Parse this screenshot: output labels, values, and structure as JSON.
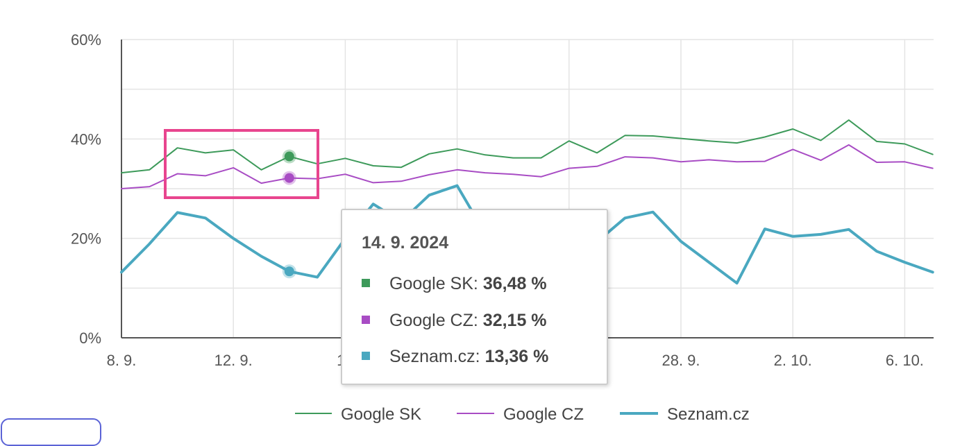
{
  "chart_data": {
    "type": "line",
    "y_ticks": [
      "0%",
      "20%",
      "40%",
      "60%"
    ],
    "ylim": [
      0,
      60
    ],
    "x_tick_labels": [
      "8. 9.",
      "12. 9.",
      "16",
      "28. 9.",
      "2. 10.",
      "6. 10."
    ],
    "x_dates": [
      "8. 9.",
      "9. 9.",
      "10. 9.",
      "11. 9.",
      "12. 9.",
      "13. 9.",
      "14. 9.",
      "15. 9.",
      "16. 9.",
      "17. 9.",
      "18. 9.",
      "19. 9.",
      "20. 9.",
      "21. 9.",
      "22. 9.",
      "23. 9.",
      "24. 9.",
      "25. 9.",
      "26. 9.",
      "27. 9.",
      "28. 9.",
      "29. 9.",
      "30. 9.",
      "1. 10.",
      "2. 10.",
      "3. 10.",
      "4. 10.",
      "5. 10.",
      "6. 10.",
      "7. 10."
    ],
    "grid": true,
    "legend_position": "bottom",
    "series": [
      {
        "name": "Google SK",
        "color": "#3d9a5a",
        "line_width": "thin",
        "values": [
          33.2,
          33.8,
          38.2,
          37.2,
          37.8,
          33.8,
          36.48,
          35.0,
          36.1,
          34.6,
          34.3,
          37.0,
          38.0,
          36.8,
          36.2,
          36.2,
          39.6,
          37.2,
          40.7,
          40.6,
          40.1,
          39.6,
          39.2,
          40.4,
          42.0,
          39.7,
          43.8,
          39.5,
          39.0,
          36.9
        ]
      },
      {
        "name": "Google CZ",
        "color": "#a84cc4",
        "line_width": "thin",
        "values": [
          30.0,
          30.4,
          33.0,
          32.6,
          34.2,
          31.1,
          32.15,
          32.0,
          32.9,
          31.2,
          31.5,
          32.8,
          33.8,
          33.2,
          32.9,
          32.4,
          34.1,
          34.5,
          36.4,
          36.2,
          35.4,
          35.8,
          35.4,
          35.5,
          37.9,
          35.7,
          38.8,
          35.3,
          35.4,
          34.1
        ]
      },
      {
        "name": "Seznam.cz",
        "color": "#4aa8c0",
        "line_width": "thick",
        "values": [
          13.2,
          18.9,
          25.2,
          24.1,
          20.0,
          16.4,
          13.36,
          12.2,
          20.0,
          26.9,
          23.4,
          28.7,
          30.6,
          21.0,
          18.6,
          18.8,
          19.0,
          19.3,
          24.1,
          25.3,
          19.4,
          15.2,
          11.0,
          21.9,
          20.4,
          20.8,
          21.8,
          17.4,
          15.2,
          13.2
        ]
      }
    ],
    "highlight_index": 6,
    "tooltip": {
      "date": "14. 9. 2024",
      "rows": [
        {
          "label": "Google SK:",
          "value": "36,48 %",
          "color": "#3d9a5a"
        },
        {
          "label": "Google CZ:",
          "value": "32,15 %",
          "color": "#a84cc4"
        },
        {
          "label": "Seznam.cz:",
          "value": "13,36 %",
          "color": "#4aa8c0"
        }
      ]
    },
    "highlight_box_color": "#e8458e"
  }
}
